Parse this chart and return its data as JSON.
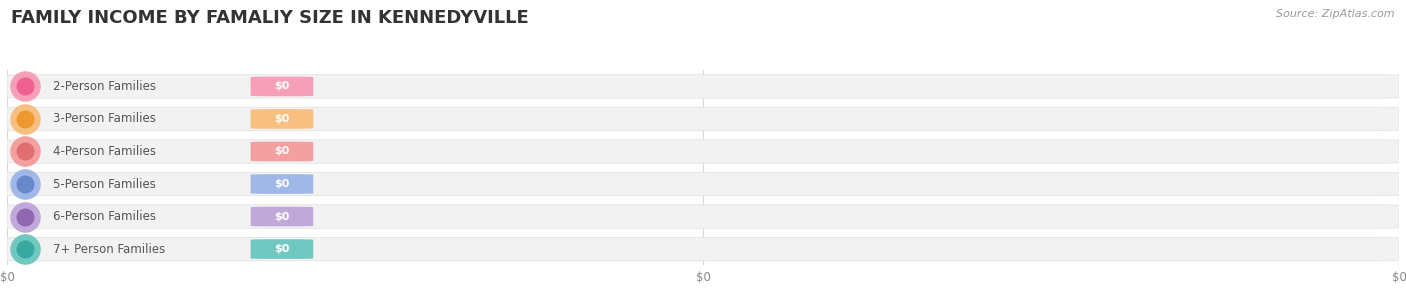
{
  "title": "FAMILY INCOME BY FAMALIY SIZE IN KENNEDYVILLE",
  "source": "Source: ZipAtlas.com",
  "categories": [
    "2-Person Families",
    "3-Person Families",
    "4-Person Families",
    "5-Person Families",
    "6-Person Families",
    "7+ Person Families"
  ],
  "values": [
    0,
    0,
    0,
    0,
    0,
    0
  ],
  "bar_colors": [
    "#F5A0B8",
    "#F8C080",
    "#F5A0A0",
    "#A0B8E8",
    "#C0A8D8",
    "#70C8C0"
  ],
  "dot_colors": [
    "#EE6090",
    "#EE9830",
    "#E07070",
    "#6888CC",
    "#9068B0",
    "#38A8A0"
  ],
  "bar_bg_color": "#F2F2F2",
  "bar_outline_color": "#E0E0E0",
  "background_color": "#FFFFFF",
  "title_fontsize": 13,
  "label_fontsize": 8.5,
  "value_label": "$0",
  "xtick_labels": [
    "$0",
    "$0",
    "$0"
  ],
  "grid_color": "#D8D8D8",
  "text_color": "#555555",
  "source_color": "#999999"
}
